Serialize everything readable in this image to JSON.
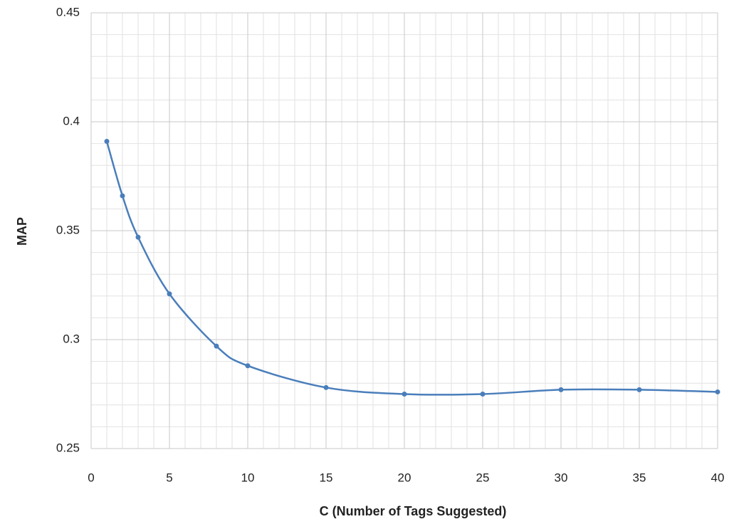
{
  "chart_data": {
    "type": "line",
    "x_label": "C (Number of Tags Suggested)",
    "y_label": "MAP",
    "x": [
      1,
      2,
      3,
      5,
      8,
      10,
      15,
      20,
      25,
      30,
      35,
      40
    ],
    "series": [
      {
        "color": "#4a7ebb",
        "values": [
          0.391,
          0.366,
          0.347,
          0.321,
          0.297,
          0.288,
          0.278,
          0.275,
          0.275,
          0.277,
          0.277,
          0.276
        ]
      }
    ],
    "xlim": [
      0,
      40
    ],
    "xticks": [
      0,
      5,
      10,
      15,
      20,
      25,
      30,
      35,
      40
    ],
    "ylim": [
      0.25,
      0.45
    ],
    "yticks": [
      0.25,
      0.3,
      0.35,
      0.4,
      0.45
    ],
    "grid": true,
    "smooth": true
  }
}
